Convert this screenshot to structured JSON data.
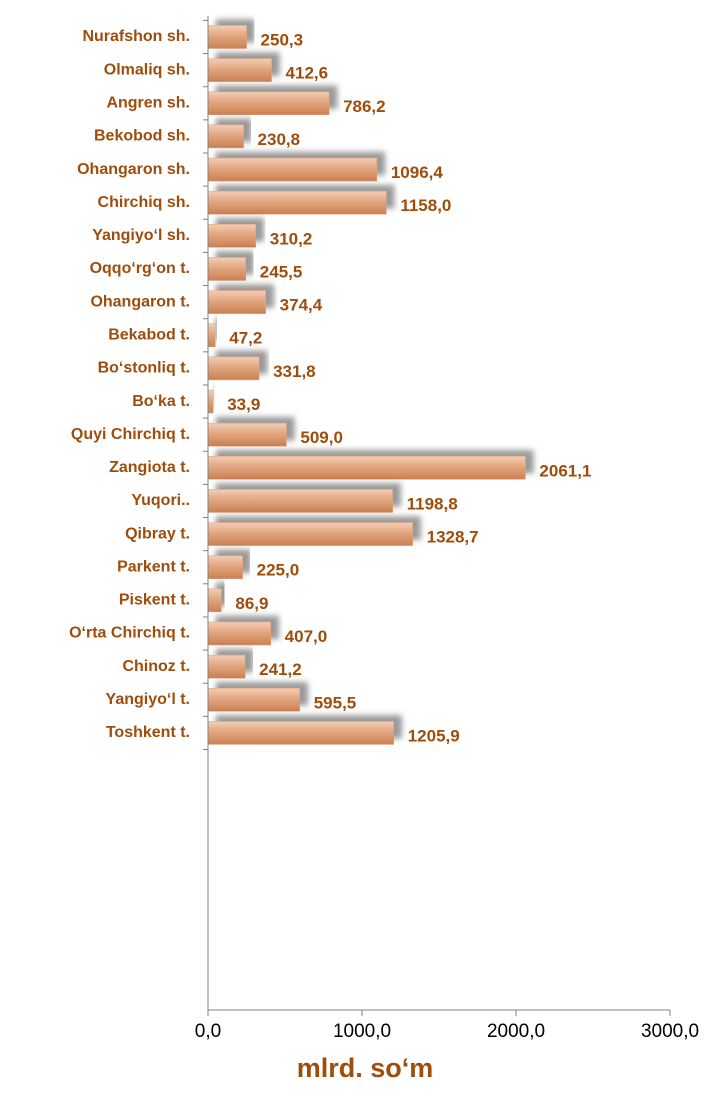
{
  "chart_data": {
    "type": "bar",
    "orientation": "horizontal",
    "categories": [
      "Nurafshon sh.",
      "Olmaliq sh.",
      "Angren sh.",
      "Bekobod sh.",
      "Ohangaron sh.",
      "Chirchiq sh.",
      "Yangiyo‘l sh.",
      "Oqqo‘rg‘on t.",
      "Ohangaron t.",
      "Bekabod t.",
      "Bo‘stonliq t.",
      "Bo‘ka t.",
      "Quyi Chirchiq t.",
      "Zangiota t.",
      "Yuqori..",
      "Qibray t.",
      "Parkent t.",
      "Piskent t.",
      "O‘rta Chirchiq t.",
      "Chinoz t.",
      "Yangiyo‘l t.",
      "Toshkent t."
    ],
    "values": [
      250.3,
      412.6,
      786.2,
      230.8,
      1096.4,
      1158.0,
      310.2,
      245.5,
      374.4,
      47.2,
      331.8,
      33.9,
      509.0,
      2061.1,
      1198.8,
      1328.7,
      225.0,
      86.9,
      407.0,
      241.2,
      595.5,
      1205.9
    ],
    "value_labels": [
      "250,3",
      "412,6",
      "786,2",
      "230,8",
      "1096,4",
      "1158,0",
      "310,2",
      "245,5",
      "374,4",
      "47,2",
      "331,8",
      "33,9",
      "509,0",
      "2061,1",
      "1198,8",
      "1328,7",
      "225,0",
      "86,9",
      "407,0",
      "241,2",
      "595,5",
      "1205,9"
    ],
    "color": "#e0a27a",
    "xlim": [
      0,
      3000
    ],
    "xticks": [
      {
        "value": 0,
        "label": "0,0"
      },
      {
        "value": 1000,
        "label": "1000,0"
      },
      {
        "value": 2000,
        "label": "2000,0"
      },
      {
        "value": 3000,
        "label": "3000,0"
      }
    ],
    "xlabel": "mlrd. so‘m"
  }
}
